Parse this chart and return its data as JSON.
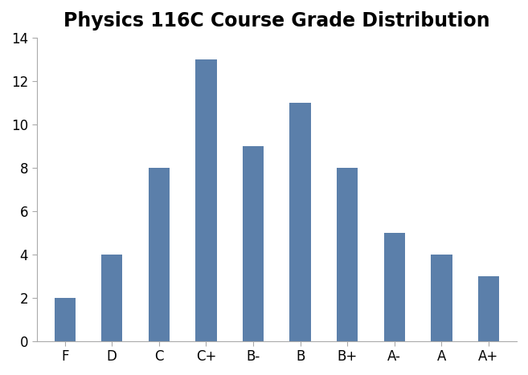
{
  "title": "Physics 116C Course Grade Distribution",
  "categories": [
    "F",
    "D",
    "C",
    "C+",
    "B-",
    "B",
    "B+",
    "A-",
    "A",
    "A+"
  ],
  "values": [
    2,
    4,
    8,
    13,
    9,
    11,
    8,
    5,
    4,
    3
  ],
  "bar_color": "#5b7faa",
  "ylim": [
    0,
    14
  ],
  "yticks": [
    0,
    2,
    4,
    6,
    8,
    10,
    12,
    14
  ],
  "title_fontsize": 17,
  "tick_fontsize": 12,
  "background_color": "#ffffff",
  "bar_width": 0.45,
  "figsize": [
    6.57,
    4.67
  ],
  "dpi": 100
}
